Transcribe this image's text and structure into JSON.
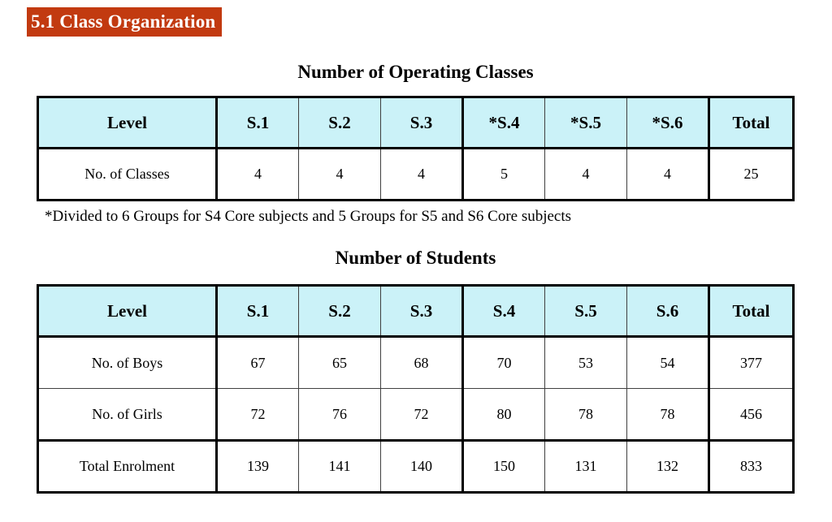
{
  "page": {
    "section_heading": "5.1 Class Organization",
    "footnote": "*Divided to 6 Groups for S4 Core subjects and 5 Groups for S5 and S6 Core subjects"
  },
  "colors": {
    "heading_background": "#C23A10",
    "heading_text": "#FFFFFF",
    "table_header_fill": "#CBF2F8",
    "table_border": "#000000"
  },
  "tables": [
    {
      "type": "table",
      "title": "Number of Operating Classes",
      "columns": [
        "Level",
        "S.1",
        "S.2",
        "S.3",
        "*S.4",
        "*S.5",
        "*S.6",
        "Total"
      ],
      "rows": [
        {
          "label": "No. of Classes",
          "values": [
            "4",
            "4",
            "4",
            "5",
            "4",
            "4",
            "25"
          ]
        }
      ]
    },
    {
      "type": "table",
      "title": "Number of Students",
      "columns": [
        "Level",
        "S.1",
        "S.2",
        "S.3",
        "S.4",
        "S.5",
        "S.6",
        "Total"
      ],
      "rows": [
        {
          "label": "No. of Boys",
          "values": [
            "67",
            "65",
            "68",
            "70",
            "53",
            "54",
            "377"
          ]
        },
        {
          "label": "No. of Girls",
          "values": [
            "72",
            "76",
            "72",
            "80",
            "78",
            "78",
            "456"
          ]
        },
        {
          "label": "Total Enrolment",
          "values": [
            "139",
            "141",
            "140",
            "150",
            "131",
            "132",
            "833"
          ]
        }
      ]
    }
  ]
}
